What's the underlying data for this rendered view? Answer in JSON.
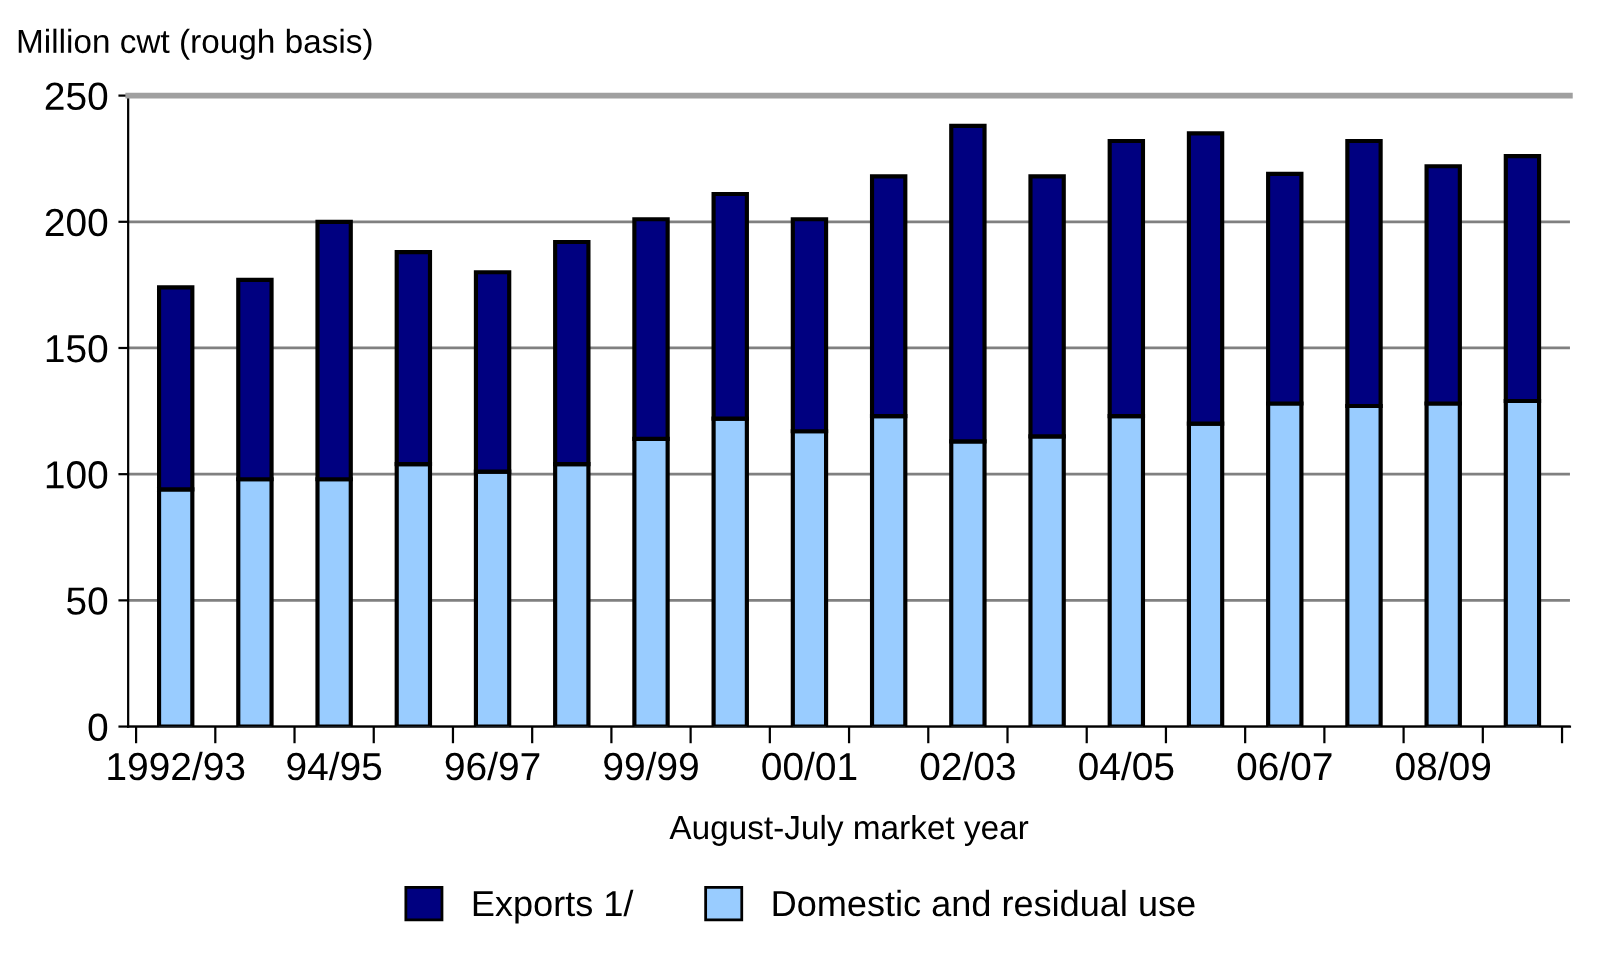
{
  "chart_data": {
    "type": "bar",
    "stacked": true,
    "ylabel": "Million cwt (rough basis)",
    "xlabel": "August-July market year",
    "categories": [
      "1992/93",
      null,
      "94/95",
      null,
      "96/97",
      null,
      "99/99",
      null,
      "00/01",
      null,
      "02/03",
      null,
      "04/05",
      null,
      "06/07",
      null,
      "08/09",
      null
    ],
    "series": [
      {
        "name": "Domestic and residual use",
        "color": "#99ccff",
        "values": [
          94,
          98,
          98,
          104,
          101,
          104,
          114,
          122,
          117,
          123,
          113,
          115,
          123,
          120,
          128,
          127,
          128,
          129
        ]
      },
      {
        "name": "Exports 1/",
        "color": "#000080",
        "values": [
          80,
          79,
          102,
          84,
          79,
          88,
          87,
          89,
          84,
          95,
          125,
          103,
          109,
          115,
          91,
          105,
          94,
          97
        ]
      }
    ],
    "ylim": [
      0,
      250
    ],
    "yticks": [
      0,
      50,
      100,
      150,
      200,
      250
    ],
    "grid": "y",
    "legend": "bottom"
  }
}
